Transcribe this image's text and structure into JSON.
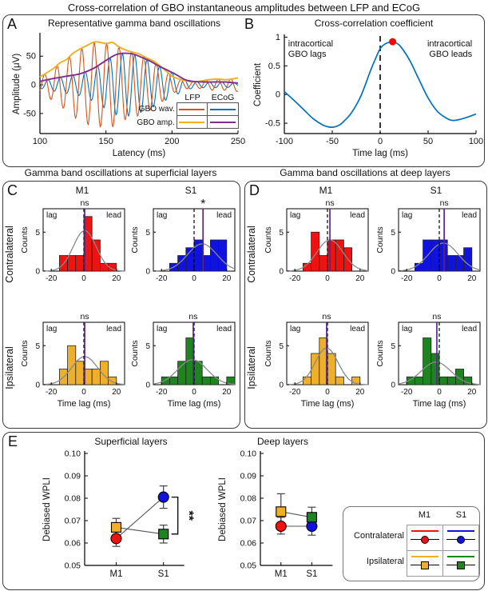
{
  "figure_title": "Cross-correlation of GBO instantaneous amplitudes between LFP and ECoG",
  "panels": {
    "a": {
      "label": "A"
    },
    "b": {
      "label": "B"
    },
    "c": {
      "label": "C"
    },
    "d": {
      "label": "D"
    },
    "e": {
      "label": "E"
    }
  },
  "colors": {
    "lfp_wave": "#D95319",
    "ecog_wave": "#0072BD",
    "lfp_amp": "#EDB120",
    "ecog_amp": "#7E2F8E",
    "hist_red": "#ee1310",
    "hist_blue": "#1013e0",
    "hist_yellow": "#eeb02a",
    "hist_green": "#1e8420",
    "mean_line": "#5a2491",
    "normal_fit": "#8a8a8a",
    "peak_dot": "#ff0000"
  },
  "sections": {
    "c": {
      "title": "Gamma band oscillations at superficial layers",
      "col_headers": [
        "M1",
        "S1"
      ],
      "row_labels": [
        "Contralateral",
        "Ipsilateral"
      ]
    },
    "d": {
      "title": "Gamma band oscillations at deep layers",
      "col_headers": [
        "M1",
        "S1"
      ],
      "row_labels": [
        "Contralateral",
        "Ipsilateral"
      ]
    },
    "e": {
      "legend": {
        "columns": [
          "M1",
          "S1"
        ],
        "rows": [
          "Contralateral",
          "Ipsilateral"
        ],
        "cells": [
          [
            {
              "line_color": "#ee1310",
              "marker": "circle",
              "marker_color": "#ee1310"
            },
            {
              "line_color": "#1013e0",
              "marker": "circle",
              "marker_color": "#1013e0"
            }
          ],
          [
            {
              "line_color": "#eeb02a",
              "marker": "square",
              "marker_color": "#eeb02a"
            },
            {
              "line_color": "#1e8420",
              "marker": "square",
              "marker_color": "#1e8420"
            }
          ]
        ]
      }
    }
  },
  "chart_data": [
    {
      "id": "A",
      "type": "line",
      "title": "Representative gamma band oscillations",
      "xlabel": "Latency (ms)",
      "ylabel": "Amplitude (μV)",
      "xlim": [
        100,
        250
      ],
      "ylim": [
        -85,
        88
      ],
      "xticks": [
        100,
        150,
        200,
        250
      ],
      "yticks": [
        -50,
        0,
        50
      ],
      "wave": {
        "period_ms": 9.4,
        "lfp_peak_t": 103.5,
        "ecog_peak_t": 106
      },
      "envelopes": {
        "lfp": [
          [
            100,
            14
          ],
          [
            110,
            28
          ],
          [
            115,
            38
          ],
          [
            120,
            44
          ],
          [
            125,
            55
          ],
          [
            130,
            62
          ],
          [
            135,
            68
          ],
          [
            142,
            75
          ],
          [
            150,
            72
          ],
          [
            155,
            74
          ],
          [
            160,
            66
          ],
          [
            167,
            59
          ],
          [
            175,
            54
          ],
          [
            180,
            48
          ],
          [
            187,
            40
          ],
          [
            195,
            25
          ],
          [
            200,
            15
          ],
          [
            207,
            9
          ],
          [
            213,
            6
          ],
          [
            220,
            6
          ],
          [
            228,
            9
          ],
          [
            235,
            10
          ],
          [
            242,
            9
          ],
          [
            250,
            12
          ]
        ],
        "ecog": [
          [
            100,
            6
          ],
          [
            110,
            11
          ],
          [
            120,
            15
          ],
          [
            130,
            19
          ],
          [
            140,
            28
          ],
          [
            147,
            38
          ],
          [
            153,
            47
          ],
          [
            158,
            53
          ],
          [
            163,
            55
          ],
          [
            170,
            54
          ],
          [
            176,
            49
          ],
          [
            183,
            42
          ],
          [
            190,
            33
          ],
          [
            197,
            25
          ],
          [
            203,
            18
          ],
          [
            210,
            9
          ],
          [
            216,
            6
          ],
          [
            224,
            5
          ],
          [
            232,
            5
          ],
          [
            240,
            5
          ],
          [
            250,
            3
          ]
        ]
      },
      "series": [
        {
          "name": "GBO wav. ECoG",
          "color": "#0072BD",
          "kind": "wave",
          "envelope": "ecog"
        },
        {
          "name": "GBO wav. LFP",
          "color": "#D95319",
          "kind": "wave",
          "envelope": "lfp"
        },
        {
          "name": "GBO amp. LFP",
          "color": "#EDB120",
          "kind": "envelope",
          "envelope": "lfp"
        },
        {
          "name": "GBO amp. ECoG",
          "color": "#7E2F8E",
          "kind": "envelope",
          "envelope": "ecog"
        }
      ],
      "legend": {
        "columns": [
          "LFP",
          "ECoG"
        ],
        "rows": [
          "GBO wav.",
          "GBO amp."
        ],
        "cell_colors": [
          [
            "#D95319",
            "#0072BD"
          ],
          [
            "#EDB120",
            "#7E2F8E"
          ]
        ]
      }
    },
    {
      "id": "B",
      "type": "line",
      "title": "Cross-correlation coefficient",
      "xlabel": "Time lag (ms)",
      "ylabel": "Coefficient",
      "xlim": [
        -100,
        100
      ],
      "ylim": [
        -0.68,
        1.02
      ],
      "xticks": [
        -100,
        -50,
        0,
        50,
        100
      ],
      "yticks": [
        -0.5,
        0,
        0.5,
        1
      ],
      "x": [
        -100,
        -90,
        -80,
        -70,
        -60,
        -55,
        -50,
        -45,
        -40,
        -30,
        -20,
        -10,
        -5,
        0,
        5,
        10,
        13,
        20,
        30,
        40,
        50,
        60,
        70,
        75,
        80,
        90,
        100
      ],
      "y": [
        0.05,
        -0.1,
        -0.26,
        -0.42,
        -0.53,
        -0.56,
        -0.57,
        -0.55,
        -0.5,
        -0.32,
        -0.02,
        0.42,
        0.62,
        0.8,
        0.88,
        0.915,
        0.92,
        0.86,
        0.62,
        0.28,
        -0.06,
        -0.3,
        -0.42,
        -0.45,
        -0.445,
        -0.4,
        -0.34
      ],
      "zero_line_dashed": true,
      "peak_marker": {
        "x": 13,
        "y": 0.92,
        "color": "#ff0000"
      },
      "annotations": {
        "left": [
          "intracortical",
          "GBO lags"
        ],
        "right": [
          "intracortical",
          "GBO leads"
        ]
      }
    },
    {
      "id": "C-contra-M1",
      "type": "bar",
      "panel": "C",
      "row": "Contralateral",
      "col": "M1",
      "color": "#ee1310",
      "bin_edges": [
        -20,
        -15,
        -10,
        -5,
        0,
        5,
        10,
        15,
        20,
        25
      ],
      "counts": [
        0,
        2,
        2,
        2,
        7,
        4,
        1,
        1,
        0
      ],
      "mean": 0.5,
      "sig": "ns",
      "normal_fit": {
        "mu": 0.5,
        "sigma": 7,
        "peak": 5.2
      },
      "xticks": [
        -20,
        0,
        20
      ],
      "yticks": [
        0,
        5
      ],
      "ylabel": "Counts",
      "corner_labels": [
        "lag",
        "lead"
      ]
    },
    {
      "id": "C-contra-S1",
      "type": "bar",
      "panel": "C",
      "row": "Contralateral",
      "col": "S1",
      "color": "#1013e0",
      "bin_edges": [
        -20,
        -15,
        -10,
        -5,
        0,
        5,
        10,
        15,
        20,
        25
      ],
      "counts": [
        0,
        1,
        2,
        3,
        4,
        2,
        4,
        4,
        0
      ],
      "mean": 5.5,
      "sig": "*",
      "normal_fit": {
        "mu": 5,
        "sigma": 9,
        "peak": 3.5
      },
      "xticks": [
        -20,
        0,
        20
      ],
      "yticks": [
        0,
        5
      ],
      "ylabel": "Counts",
      "corner_labels": [
        "lag",
        "lead"
      ]
    },
    {
      "id": "C-ipsi-M1",
      "type": "bar",
      "panel": "C",
      "row": "Ipsilateral",
      "col": "M1",
      "color": "#eeb02a",
      "bin_edges": [
        -20,
        -15,
        -10,
        -5,
        0,
        5,
        10,
        15,
        20,
        25
      ],
      "counts": [
        0,
        2,
        5,
        3,
        2,
        2,
        3,
        1,
        0
      ],
      "mean": 0.5,
      "sig": "ns",
      "normal_fit": {
        "mu": 0.5,
        "sigma": 8,
        "peak": 3.6
      },
      "xticks": [
        -20,
        0,
        20
      ],
      "yticks": [
        0,
        5
      ],
      "ylabel": "Counts",
      "xlabel": "Time lag (ms)",
      "corner_labels": [
        "lag",
        "lead"
      ]
    },
    {
      "id": "C-ipsi-S1",
      "type": "bar",
      "panel": "C",
      "row": "Ipsilateral",
      "col": "S1",
      "color": "#1e8420",
      "bin_edges": [
        -20,
        -15,
        -10,
        -5,
        0,
        5,
        10,
        15,
        20,
        25
      ],
      "counts": [
        1,
        1,
        3,
        6,
        3,
        1,
        1,
        0,
        1
      ],
      "mean": -0.5,
      "sig": "ns",
      "normal_fit": {
        "mu": -1,
        "sigma": 9,
        "peak": 3.2
      },
      "xticks": [
        -20,
        0,
        20
      ],
      "yticks": [
        0,
        5
      ],
      "ylabel": "Counts",
      "xlabel": "Time lag (ms)",
      "corner_labels": [
        "lag",
        "lead"
      ]
    },
    {
      "id": "D-contra-M1",
      "type": "bar",
      "panel": "D",
      "row": "Contralateral",
      "col": "M1",
      "color": "#ee1310",
      "bin_edges": [
        -20,
        -15,
        -10,
        -5,
        0,
        5,
        10,
        15,
        20,
        25
      ],
      "counts": [
        0,
        1,
        5,
        2,
        4,
        4,
        3,
        0,
        0
      ],
      "mean": 1.5,
      "sig": "ns",
      "normal_fit": {
        "mu": 1.5,
        "sigma": 8,
        "peak": 4.0
      },
      "xticks": [
        -20,
        0,
        20
      ],
      "yticks": [
        0,
        5
      ],
      "ylabel": "Counts",
      "corner_labels": [
        "lag",
        "lead"
      ]
    },
    {
      "id": "D-contra-S1",
      "type": "bar",
      "panel": "D",
      "row": "Contralateral",
      "col": "S1",
      "color": "#1013e0",
      "bin_edges": [
        -20,
        -15,
        -10,
        -5,
        0,
        5,
        10,
        15,
        20,
        25
      ],
      "counts": [
        0,
        1,
        4,
        4,
        4,
        2,
        2,
        3,
        0
      ],
      "mean": 3,
      "sig": "ns",
      "normal_fit": {
        "mu": 2.5,
        "sigma": 9,
        "peak": 3.6
      },
      "xticks": [
        -20,
        0,
        20
      ],
      "yticks": [
        0,
        5
      ],
      "ylabel": "Counts",
      "corner_labels": [
        "lag",
        "lead"
      ]
    },
    {
      "id": "D-ipsi-M1",
      "type": "bar",
      "panel": "D",
      "row": "Ipsilateral",
      "col": "M1",
      "color": "#eeb02a",
      "bin_edges": [
        -20,
        -15,
        -10,
        -5,
        0,
        5,
        10,
        15,
        20,
        25
      ],
      "counts": [
        0,
        1,
        4,
        6,
        4,
        1,
        0,
        1,
        0
      ],
      "mean": -0.5,
      "sig": "ns",
      "normal_fit": {
        "mu": -0.5,
        "sigma": 7,
        "peak": 4.7
      },
      "xticks": [
        -20,
        0,
        20
      ],
      "yticks": [
        0,
        5
      ],
      "ylabel": "Counts",
      "xlabel": "Time lag (ms)",
      "corner_labels": [
        "lag",
        "lead"
      ]
    },
    {
      "id": "D-ipsi-S1",
      "type": "bar",
      "panel": "D",
      "row": "Ipsilateral",
      "col": "S1",
      "color": "#1e8420",
      "bin_edges": [
        -20,
        -15,
        -10,
        -5,
        0,
        5,
        10,
        15,
        20,
        25
      ],
      "counts": [
        1,
        1,
        6,
        4,
        1,
        1,
        2,
        1,
        0
      ],
      "mean": -1.5,
      "sig": "ns",
      "normal_fit": {
        "mu": -2,
        "sigma": 9,
        "peak": 2.9
      },
      "xticks": [
        -20,
        0,
        20
      ],
      "yticks": [
        0,
        5
      ],
      "ylabel": "Counts",
      "xlabel": "Time lag (ms)",
      "corner_labels": [
        "lag",
        "lead"
      ]
    },
    {
      "id": "E-superficial",
      "type": "scatter",
      "title": "Superficial layers",
      "ylabel": "Debiased WPLI",
      "ylim": [
        0.05,
        0.1
      ],
      "yticks": [
        "0.05",
        "0.06",
        "0.07",
        "0.08",
        "0.09",
        "0.10"
      ],
      "categories": [
        "M1",
        "S1"
      ],
      "points": [
        {
          "group": "Contralateral",
          "cat": "M1",
          "marker": "circle",
          "color": "#ee1310",
          "y": 0.062,
          "err_lo": 0.0585,
          "err_hi": 0.066
        },
        {
          "group": "Ipsilateral",
          "cat": "M1",
          "marker": "square",
          "color": "#eeb02a",
          "y": 0.067,
          "err_lo": 0.063,
          "err_hi": 0.071
        },
        {
          "group": "Contralateral",
          "cat": "S1",
          "marker": "circle",
          "color": "#1013e0",
          "y": 0.0805,
          "err_lo": 0.0755,
          "err_hi": 0.0855
        },
        {
          "group": "Ipsilateral",
          "cat": "S1",
          "marker": "square",
          "color": "#1e8420",
          "y": 0.064,
          "err_lo": 0.06,
          "err_hi": 0.068
        }
      ],
      "sig": {
        "label": "**",
        "cat": "S1"
      }
    },
    {
      "id": "E-deep",
      "type": "scatter",
      "title": "Deep layers",
      "ylabel": "Debiased WPLI",
      "ylim": [
        0.05,
        0.1
      ],
      "yticks": [
        "0.05",
        "0.06",
        "0.07",
        "0.08",
        "0.09",
        "0.10"
      ],
      "categories": [
        "M1",
        "S1"
      ],
      "points": [
        {
          "group": "Contralateral",
          "cat": "M1",
          "marker": "circle",
          "color": "#ee1310",
          "y": 0.0675,
          "err_lo": 0.064,
          "err_hi": 0.0715
        },
        {
          "group": "Ipsilateral",
          "cat": "M1",
          "marker": "square",
          "color": "#eeb02a",
          "y": 0.074,
          "err_lo": 0.066,
          "err_hi": 0.082
        },
        {
          "group": "Contralateral",
          "cat": "S1",
          "marker": "circle",
          "color": "#1013e0",
          "y": 0.0675,
          "err_lo": 0.0635,
          "err_hi": 0.0715
        },
        {
          "group": "Ipsilateral",
          "cat": "S1",
          "marker": "square",
          "color": "#1e8420",
          "y": 0.0715,
          "err_lo": 0.0675,
          "err_hi": 0.076
        }
      ]
    }
  ]
}
